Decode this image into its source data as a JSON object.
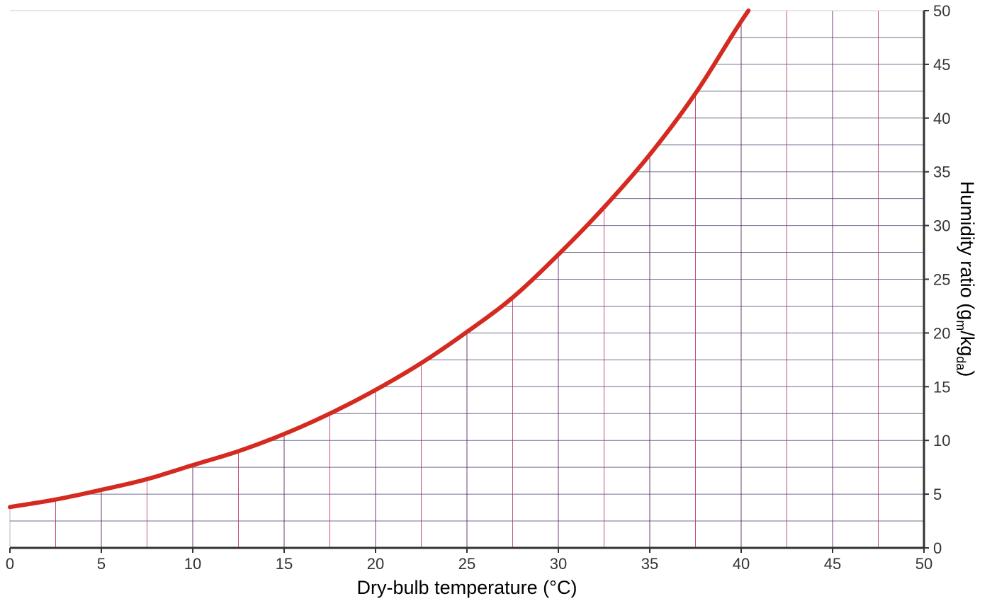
{
  "chart_data": {
    "type": "line",
    "xlabel": "Dry-bulb temperature (°C)",
    "ylabel": {
      "main": "Humidity ratio (g",
      "sub1": "m",
      "slash": "/kg",
      "sub2": "da",
      "close": ")"
    },
    "xlim": [
      0,
      50
    ],
    "ylim": [
      0,
      50
    ],
    "x_ticks": [
      "0",
      "5",
      "10",
      "15",
      "20",
      "25",
      "30",
      "35",
      "40",
      "45",
      "50"
    ],
    "y_ticks": [
      "0",
      "5",
      "10",
      "15",
      "20",
      "25",
      "30",
      "35",
      "40",
      "45",
      "50"
    ],
    "y_axis_position": "right",
    "grid": true,
    "series": [
      {
        "color": "#d42a20",
        "x": [
          0,
          2.5,
          5,
          7.5,
          10,
          12.5,
          15,
          17.5,
          20,
          22.5,
          25,
          27.5,
          30,
          32.5,
          35,
          37.5,
          40,
          40.4
        ],
        "y": [
          3.8,
          4.5,
          5.4,
          6.4,
          7.7,
          9.0,
          10.6,
          12.5,
          14.7,
          17.2,
          20.1,
          23.3,
          27.3,
          31.7,
          36.6,
          42.3,
          49.0,
          50.0
        ]
      }
    ],
    "colors": {
      "curve": "#d42a20",
      "grid_h": "#53567a",
      "grid_v_a": "#b7336a",
      "grid_v_b": "#5a1a5a",
      "axis": "#333333"
    }
  }
}
